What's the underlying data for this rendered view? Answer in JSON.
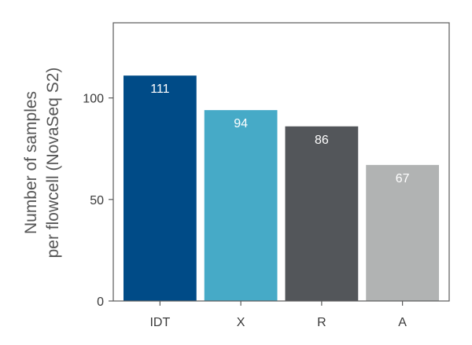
{
  "chart_data": {
    "type": "bar",
    "categories": [
      "IDT",
      "X",
      "R",
      "A"
    ],
    "values": [
      111,
      94,
      86,
      67
    ],
    "data_labels": [
      "111",
      "94",
      "86",
      "67"
    ],
    "colors": [
      "#004B87",
      "#46AAC7",
      "#53565A",
      "#B1B3B3"
    ],
    "ylabel_lines": [
      "Number of samples",
      "per flowcell (NovaSeq S2)"
    ],
    "yticks": [
      0,
      50,
      100
    ],
    "ytick_labels": [
      "0",
      "50",
      "100"
    ],
    "ylim": [
      0,
      137
    ],
    "grid": false,
    "legend": "none"
  }
}
